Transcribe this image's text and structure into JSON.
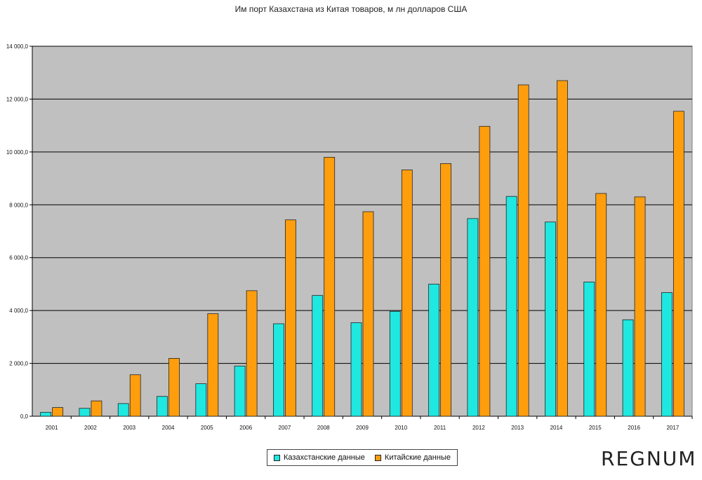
{
  "chart_data": {
    "type": "bar",
    "title": "Им порт Казахстана из Китая товаров, м лн долларов США",
    "categories": [
      "2001",
      "2002",
      "2003",
      "2004",
      "2005",
      "2006",
      "2007",
      "2008",
      "2009",
      "2010",
      "2011",
      "2012",
      "2013",
      "2014",
      "2015",
      "2016",
      "2017"
    ],
    "series": [
      {
        "name": "Казахстанские данные",
        "color": "#1fe8e0",
        "values": [
          150,
          300,
          480,
          750,
          1230,
          1900,
          3500,
          4570,
          3540,
          3970,
          5000,
          7480,
          8320,
          7350,
          5080,
          3650,
          4680
        ]
      },
      {
        "name": "Китайские данные",
        "color": "#ff9e0d",
        "values": [
          330,
          580,
          1570,
          2190,
          3880,
          4750,
          7430,
          9800,
          7740,
          9320,
          9560,
          10970,
          12540,
          12700,
          8430,
          8300,
          11540
        ]
      }
    ],
    "yticks": [
      "0,0",
      "2 000,0",
      "4 000,0",
      "6 000,0",
      "8 000,0",
      "10 000,0",
      "12 000,0",
      "14 000,0"
    ],
    "ylim": [
      0,
      14000
    ],
    "xlabel": "",
    "ylabel": "",
    "grid": true,
    "legend_position": "bottom",
    "plot_background": "#c0c0c0"
  },
  "watermark": "REGNUM"
}
